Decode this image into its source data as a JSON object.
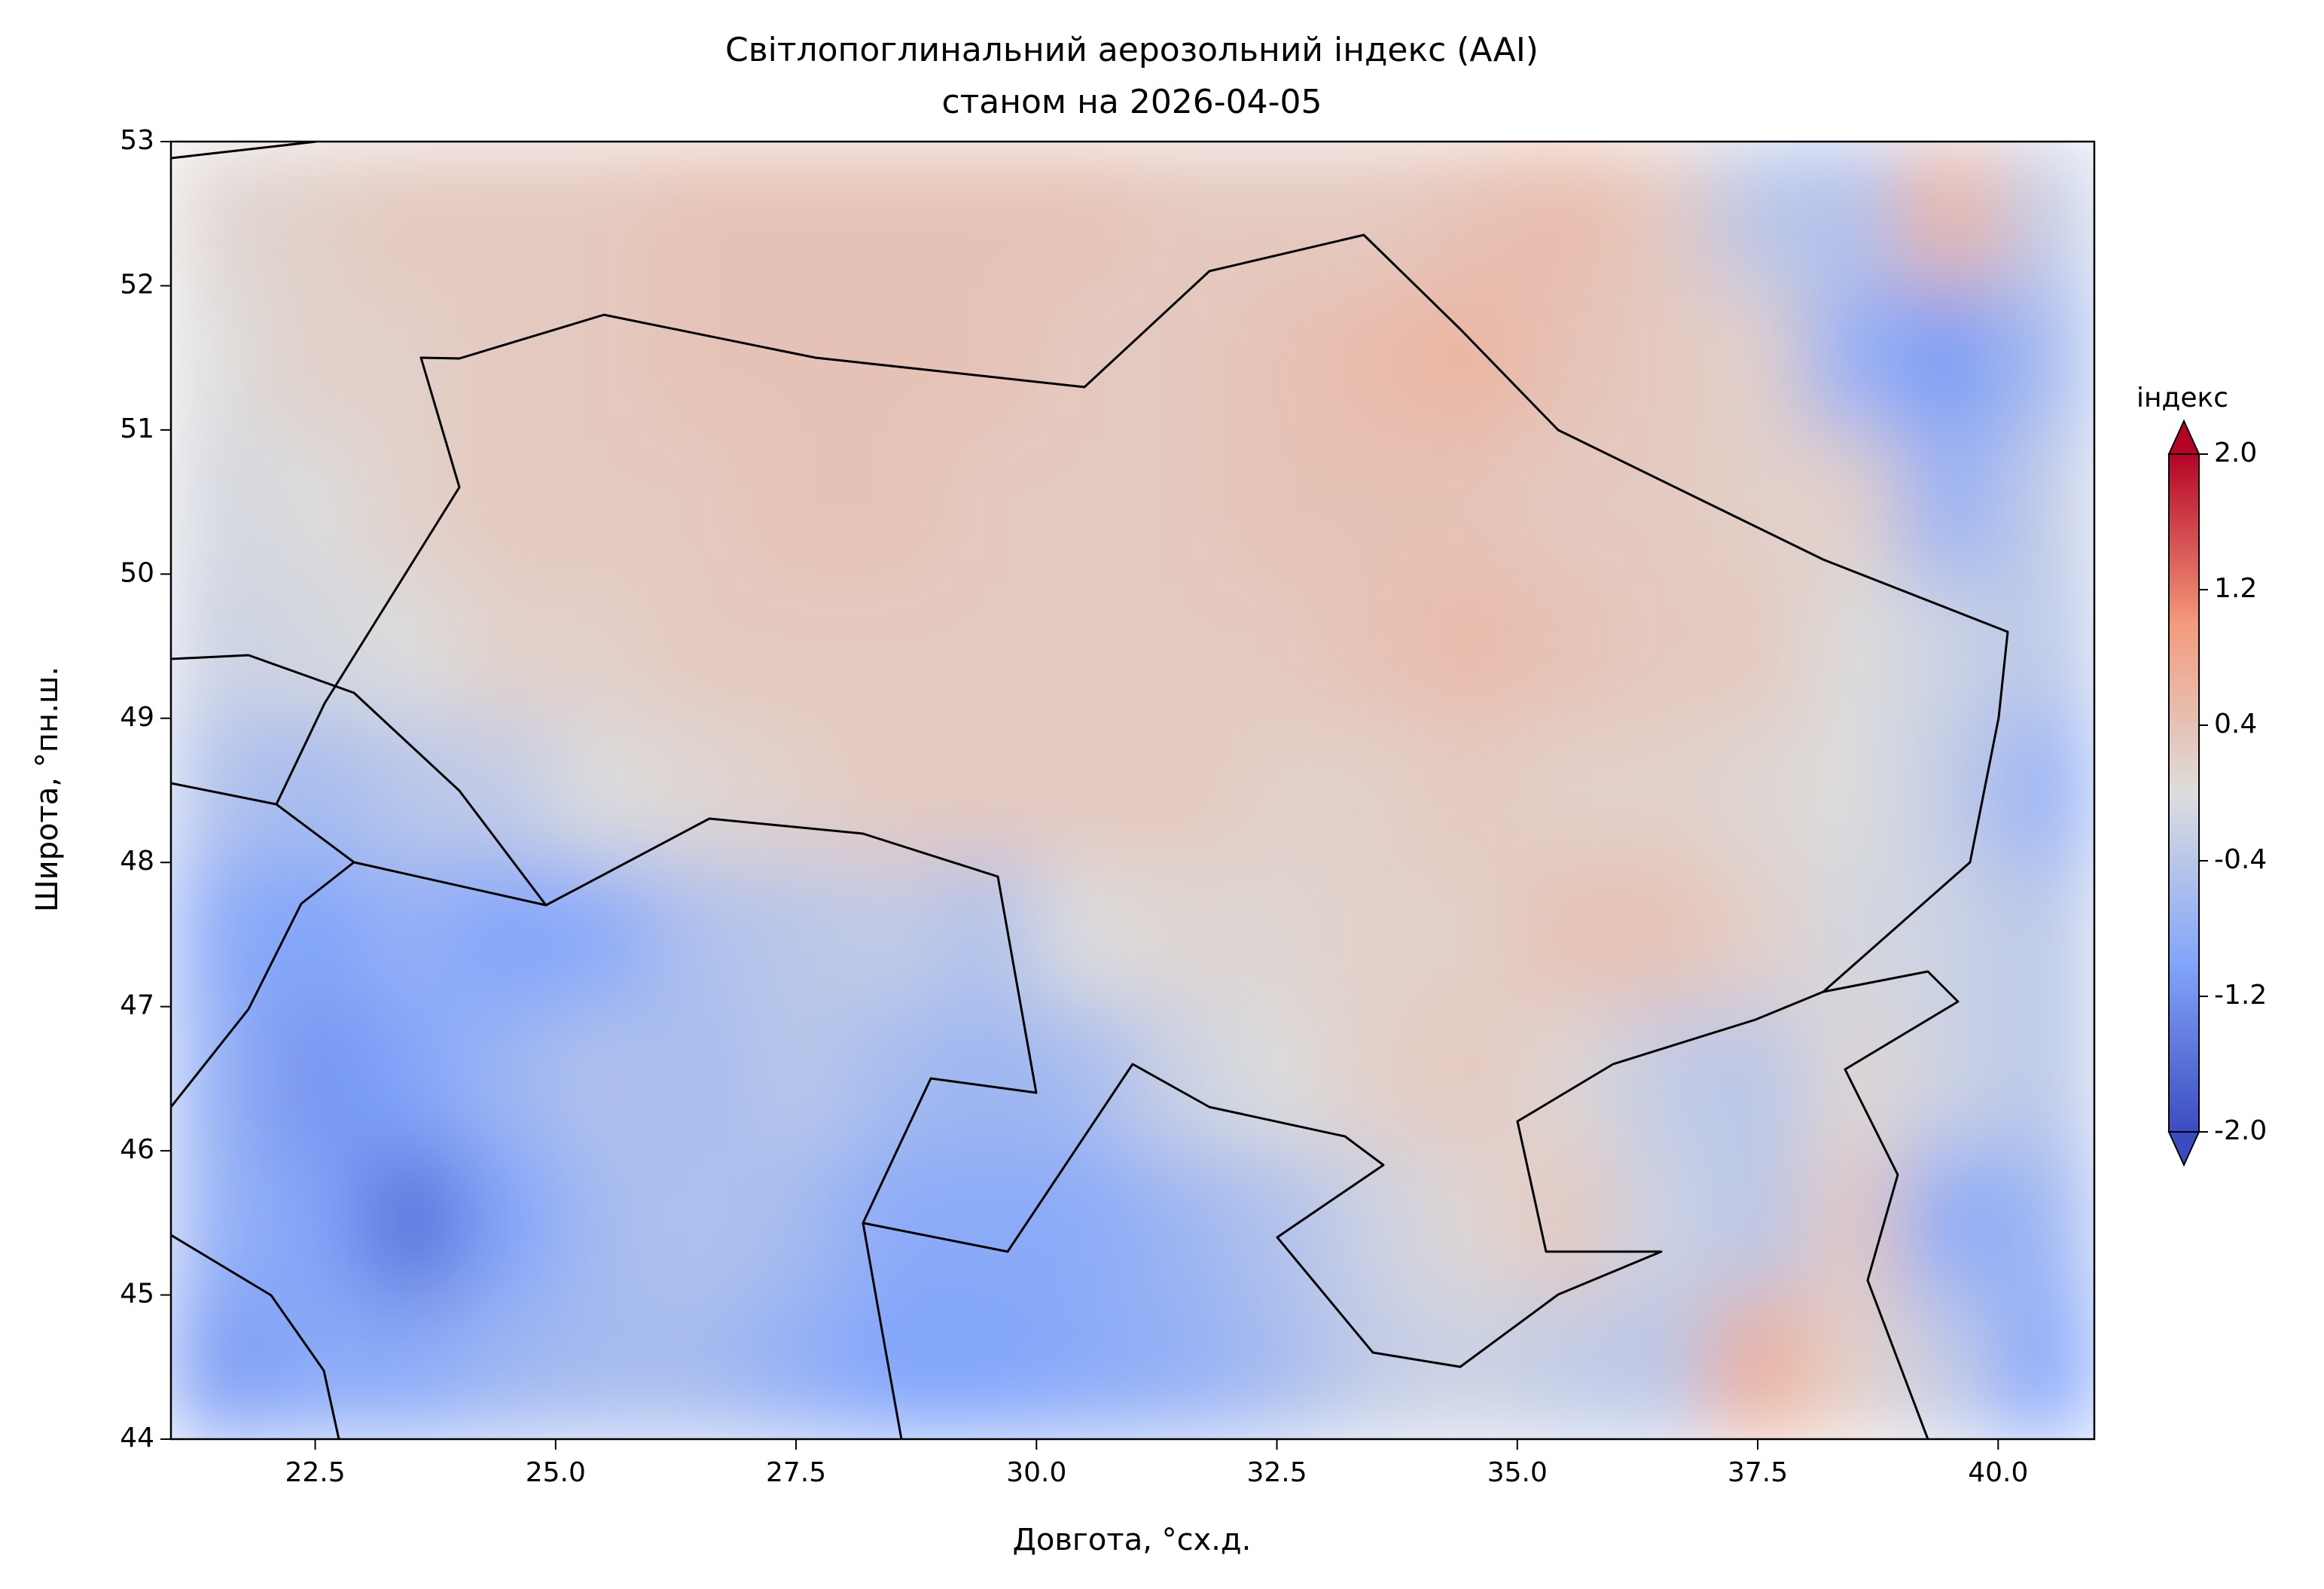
{
  "chart_data": {
    "type": "contourf",
    "title": "Світлопоглинальний аерозольний індекс (AAI)",
    "subtitle": "станом на 2026-04-05",
    "xlabel": "Довгота, °сх.д.",
    "ylabel": "Широта, °пн.ш.",
    "xlim": [
      21,
      41
    ],
    "ylim": [
      44,
      53
    ],
    "xticks": [
      {
        "value": 22.5,
        "label": "22.5"
      },
      {
        "value": 25,
        "label": "25.0"
      },
      {
        "value": 27.5,
        "label": "27.5"
      },
      {
        "value": 30,
        "label": "30.0"
      },
      {
        "value": 32.5,
        "label": "32.5"
      },
      {
        "value": 35,
        "label": "35.0"
      },
      {
        "value": 37.5,
        "label": "37.5"
      },
      {
        "value": 40,
        "label": "40.0"
      }
    ],
    "yticks": [
      44,
      45,
      46,
      47,
      48,
      49,
      50,
      51,
      52,
      53
    ],
    "lon_edges": [
      21,
      22,
      23,
      24,
      25,
      26,
      27,
      28,
      29,
      30,
      31,
      32,
      33,
      34,
      35,
      36,
      37,
      38,
      39,
      40,
      41
    ],
    "lat_edges": [
      53,
      52,
      51,
      50,
      49,
      48,
      47,
      46,
      45,
      44
    ],
    "values": [
      [
        0.1,
        0.2,
        0.3,
        0.3,
        0.3,
        0.4,
        0.4,
        0.4,
        0.4,
        0.4,
        0.3,
        0.3,
        0.3,
        0.4,
        0.5,
        0.3,
        -0.4,
        -0.5,
        0.6,
        -0.3
      ],
      [
        0.0,
        0.2,
        0.2,
        0.3,
        0.3,
        0.4,
        0.4,
        0.4,
        0.4,
        0.3,
        0.3,
        0.4,
        0.5,
        0.6,
        0.4,
        0.3,
        0.2,
        -0.8,
        -1.1,
        -0.6
      ],
      [
        -0.1,
        0.0,
        0.2,
        0.3,
        0.3,
        0.3,
        0.4,
        0.4,
        0.3,
        0.3,
        0.3,
        0.4,
        0.4,
        0.4,
        0.3,
        0.3,
        0.2,
        0.2,
        -0.8,
        -0.3
      ],
      [
        -0.2,
        -0.1,
        0.0,
        0.2,
        0.2,
        0.3,
        0.3,
        0.3,
        0.3,
        0.3,
        0.3,
        0.3,
        0.4,
        0.5,
        0.4,
        0.3,
        0.3,
        0.0,
        -0.2,
        -0.4
      ],
      [
        -0.5,
        -0.6,
        -0.4,
        -0.3,
        0.0,
        0.1,
        0.2,
        0.3,
        0.3,
        0.3,
        0.3,
        0.2,
        0.2,
        0.3,
        0.2,
        0.2,
        0.1,
        0.0,
        -0.3,
        -0.8
      ],
      [
        -0.9,
        -1.0,
        -0.8,
        -1.0,
        -0.9,
        -0.5,
        -0.4,
        -0.3,
        -0.5,
        0.0,
        0.1,
        0.1,
        0.2,
        0.2,
        0.4,
        0.4,
        0.2,
        -0.1,
        -0.2,
        -0.4
      ],
      [
        -0.8,
        -1.2,
        -1.0,
        -0.7,
        -0.5,
        -0.6,
        -0.4,
        -0.6,
        -0.7,
        -0.6,
        -0.2,
        0.0,
        0.2,
        0.3,
        0.1,
        -0.3,
        -0.4,
        0.1,
        -0.2,
        -0.4
      ],
      [
        -0.8,
        -1.0,
        -1.6,
        -1.0,
        -0.6,
        -0.5,
        -0.6,
        -0.9,
        -0.9,
        -0.9,
        -0.7,
        -0.5,
        -0.2,
        0.1,
        0.3,
        -0.2,
        -0.4,
        0.3,
        -0.9,
        -0.7
      ],
      [
        -1.1,
        -0.9,
        -0.9,
        -0.7,
        -0.6,
        -0.6,
        -0.8,
        -1.0,
        -1.0,
        -0.9,
        -0.8,
        -0.6,
        -0.3,
        -0.2,
        -0.3,
        -0.4,
        0.7,
        0.2,
        -0.3,
        -1.0
      ]
    ],
    "colorbar": {
      "label": "індекс",
      "colormap": "coolwarm",
      "clim": [
        -2,
        2
      ],
      "extend": "both",
      "ticks": [
        {
          "value": 2,
          "label": "2.0"
        },
        {
          "value": 1.2,
          "label": "1.2"
        },
        {
          "value": 0.4,
          "label": "0.4"
        },
        {
          "value": -0.4,
          "label": "-0.4"
        },
        {
          "value": -1.2,
          "label": "-1.2"
        },
        {
          "value": -2,
          "label": "-2.0"
        }
      ]
    }
  }
}
